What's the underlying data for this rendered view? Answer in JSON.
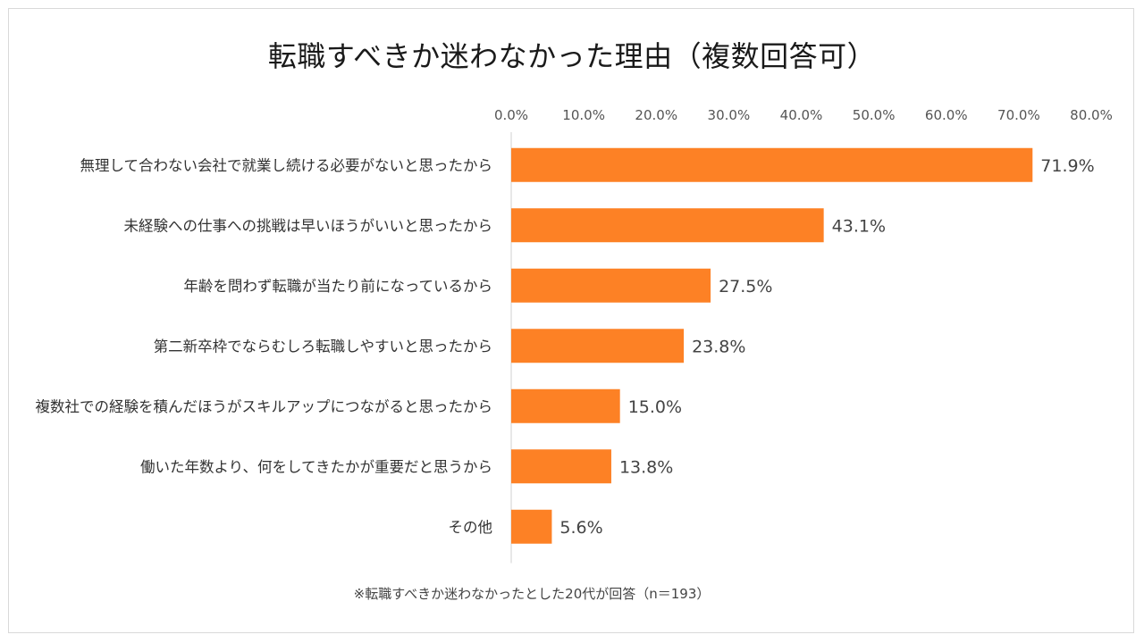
{
  "chart_data": {
    "type": "bar",
    "orientation": "horizontal",
    "title": "転職すべきか迷わなかった理由（複数回答可）",
    "categories": [
      "無理して合わない会社で就業し続ける必要がないと思ったから",
      "未経験への仕事への挑戦は早いほうがいいと思ったから",
      "年齢を問わず転職が当たり前になっているから",
      "第二新卒枠でならむしろ転職しやすいと思ったから",
      "複数社での経験を積んだほうがスキルアップにつながると思ったから",
      "働いた年数より、何をしてきたかが重要だと思うから",
      "その他"
    ],
    "values": [
      71.9,
      43.1,
      27.5,
      23.8,
      15.0,
      13.8,
      5.6
    ],
    "value_labels": [
      "71.9%",
      "43.1%",
      "27.5%",
      "23.8%",
      "15.0%",
      "13.8%",
      "5.6%"
    ],
    "xlim": [
      0,
      80
    ],
    "ticks": [
      0,
      10,
      20,
      30,
      40,
      50,
      60,
      70,
      80
    ],
    "tick_labels": [
      "0.0%",
      "10.0%",
      "20.0%",
      "30.0%",
      "40.0%",
      "50.0%",
      "60.0%",
      "70.0%",
      "80.0%"
    ],
    "axis_position": "top",
    "grid": false,
    "legend": "none",
    "bar_color": "#FD8125",
    "footnote": "※転職すべきか迷わなかったとした20代が回答（n＝193）"
  }
}
